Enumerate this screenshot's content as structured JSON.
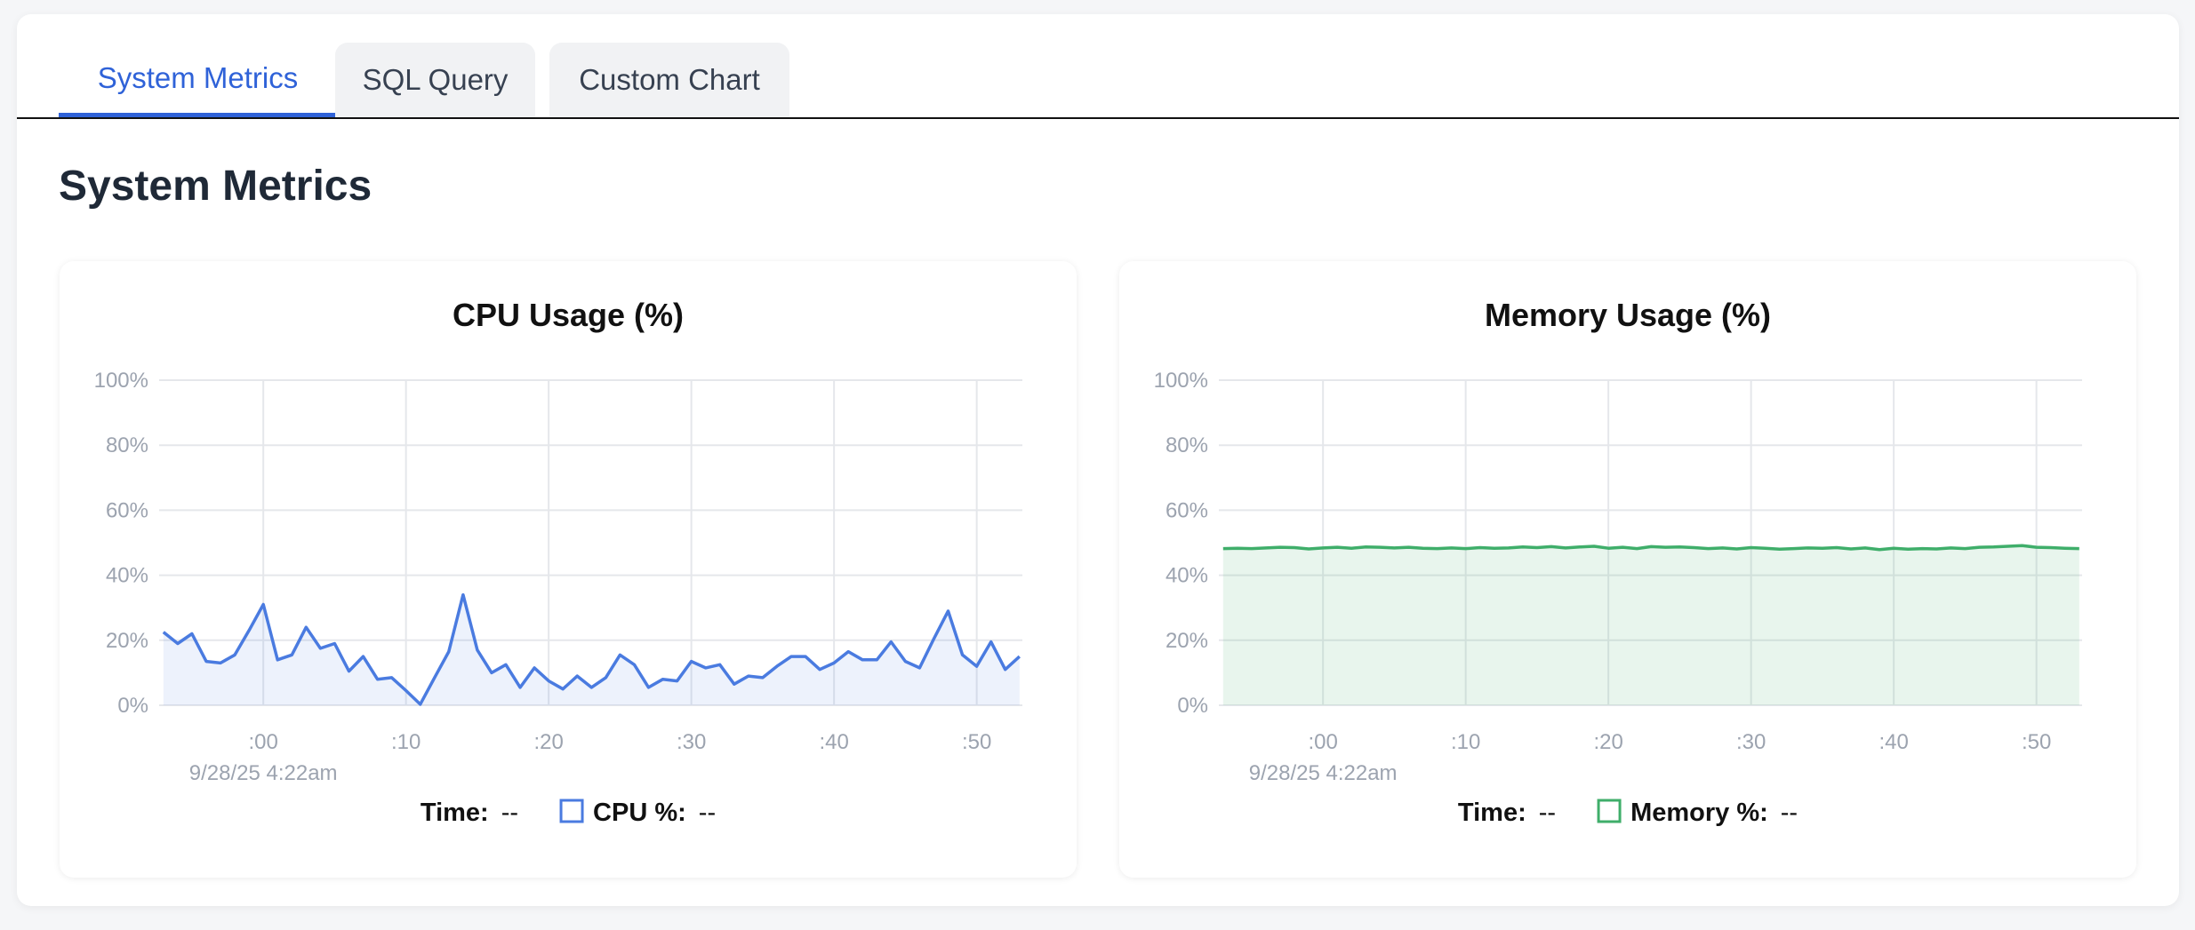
{
  "tabs": [
    {
      "label": "System Metrics",
      "active": true
    },
    {
      "label": "SQL Query",
      "active": false
    },
    {
      "label": "Custom Chart",
      "active": false
    }
  ],
  "page": {
    "title": "System Metrics"
  },
  "colors": {
    "cpu": "#4a7be0",
    "memory": "#3fae6a",
    "active_tab": "#2f62d8"
  },
  "chart_data": [
    {
      "type": "area",
      "title": "CPU Usage (%)",
      "y_ticks": [
        "0%",
        "20%",
        "40%",
        "60%",
        "80%",
        "100%"
      ],
      "ylim": [
        0,
        100
      ],
      "xlim": [
        -7.3,
        53.2
      ],
      "x_ticks": [
        {
          "x": 0,
          "label": ":00"
        },
        {
          "x": 10,
          "label": ":10"
        },
        {
          "x": 20,
          "label": ":20"
        },
        {
          "x": 30,
          "label": ":30"
        },
        {
          "x": 40,
          "label": ":40"
        },
        {
          "x": 50,
          "label": ":50"
        }
      ],
      "x_sublabel": "9/28/25 4:22am",
      "grid": true,
      "series": [
        {
          "name": "CPU %",
          "x": [
            -7,
            -6,
            -5,
            -4,
            -3,
            -2,
            -1,
            0,
            1,
            2,
            3,
            4,
            5,
            6,
            7,
            8,
            9,
            10,
            11,
            12,
            13,
            14,
            15,
            16,
            17,
            18,
            19,
            20,
            21,
            22,
            23,
            24,
            25,
            26,
            27,
            28,
            29,
            30,
            31,
            32,
            33,
            34,
            35,
            36,
            37,
            38,
            39,
            40,
            41,
            42,
            43,
            44,
            45,
            46,
            47,
            48,
            49,
            50,
            51,
            52,
            53
          ],
          "values": [
            22.5,
            19,
            22,
            13.5,
            13,
            15.5,
            23,
            31,
            14,
            15.5,
            24,
            17.5,
            19,
            10.5,
            15,
            8,
            8.5,
            4.5,
            0.3,
            8.5,
            16.5,
            34,
            17,
            10,
            12.5,
            5.5,
            11.5,
            7.5,
            5,
            9,
            5.5,
            8.5,
            15.5,
            12.5,
            5.5,
            8,
            7.5,
            13.5,
            11.5,
            12.5,
            6.5,
            9,
            8.5,
            12,
            15,
            15,
            11,
            13,
            16.5,
            14,
            14,
            19.5,
            13.5,
            11.5,
            20.5,
            29,
            15.5,
            12,
            19.5,
            11,
            15
          ]
        }
      ],
      "legend": {
        "time_label": "Time:",
        "time_value": "--",
        "series_label": "CPU %:",
        "series_value": "--"
      }
    },
    {
      "type": "area",
      "title": "Memory Usage (%)",
      "y_ticks": [
        "0%",
        "20%",
        "40%",
        "60%",
        "80%",
        "100%"
      ],
      "ylim": [
        0,
        100
      ],
      "xlim": [
        -7.3,
        53.2
      ],
      "x_ticks": [
        {
          "x": 0,
          "label": ":00"
        },
        {
          "x": 10,
          "label": ":10"
        },
        {
          "x": 20,
          "label": ":20"
        },
        {
          "x": 30,
          "label": ":30"
        },
        {
          "x": 40,
          "label": ":40"
        },
        {
          "x": 50,
          "label": ":50"
        }
      ],
      "x_sublabel": "9/28/25 4:22am",
      "grid": true,
      "series": [
        {
          "name": "Memory %",
          "x": [
            -7,
            -6,
            -5,
            -4,
            -3,
            -2,
            -1,
            0,
            1,
            2,
            3,
            4,
            5,
            6,
            7,
            8,
            9,
            10,
            11,
            12,
            13,
            14,
            15,
            16,
            17,
            18,
            19,
            20,
            21,
            22,
            23,
            24,
            25,
            26,
            27,
            28,
            29,
            30,
            31,
            32,
            33,
            34,
            35,
            36,
            37,
            38,
            39,
            40,
            41,
            42,
            43,
            44,
            45,
            46,
            47,
            48,
            49,
            50,
            51,
            52,
            53
          ],
          "values": [
            48.2,
            48.3,
            48.2,
            48.4,
            48.6,
            48.5,
            48.1,
            48.4,
            48.6,
            48.3,
            48.7,
            48.6,
            48.4,
            48.6,
            48.3,
            48.2,
            48.4,
            48.2,
            48.5,
            48.3,
            48.4,
            48.7,
            48.5,
            48.8,
            48.4,
            48.7,
            48.9,
            48.3,
            48.6,
            48.2,
            48.8,
            48.6,
            48.7,
            48.5,
            48.2,
            48.4,
            48.1,
            48.5,
            48.3,
            48.0,
            48.2,
            48.4,
            48.3,
            48.5,
            48.1,
            48.4,
            47.9,
            48.3,
            48.0,
            48.2,
            48.1,
            48.4,
            48.2,
            48.6,
            48.7,
            48.9,
            49.1,
            48.6,
            48.5,
            48.3,
            48.2
          ]
        }
      ],
      "legend": {
        "time_label": "Time:",
        "time_value": "--",
        "series_label": "Memory %:",
        "series_value": "--"
      }
    }
  ]
}
